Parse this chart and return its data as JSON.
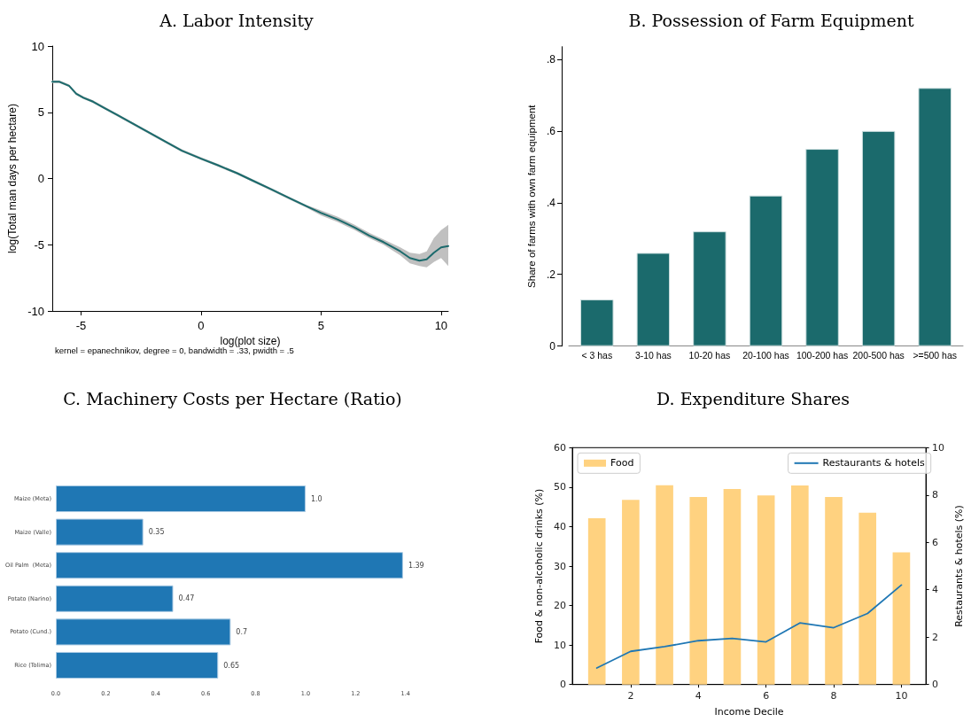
{
  "chart_data": [
    {
      "type": "line",
      "title": "A. Labor Intensity",
      "xlabel": "log(plot size)",
      "ylabel": "log(Total man days per hectare)",
      "annotations": [
        "kernel = epanechnikov, degree = 0, bandwidth = .33, pwidth = .5"
      ],
      "x": [
        -6.2,
        -5.9,
        -5.5,
        -5.2,
        -4.9,
        -4.5,
        -4.0,
        -3.5,
        -3.0,
        -2.3,
        -1.5,
        -0.8,
        0,
        0.7,
        1.5,
        2.2,
        2.9,
        3.7,
        4.4,
        5.0,
        5.7,
        6.4,
        7.0,
        7.6,
        8.3,
        8.7,
        9.1,
        9.4,
        9.7,
        10.0,
        10.3
      ],
      "series": [
        {
          "color": "#1b6a6c",
          "values": [
            7.3,
            7.3,
            7.0,
            6.4,
            6.1,
            5.8,
            5.3,
            4.8,
            4.3,
            3.6,
            2.8,
            2.1,
            1.5,
            1.0,
            0.4,
            -0.2,
            -0.8,
            -1.5,
            -2.1,
            -2.6,
            -3.1,
            -3.7,
            -4.3,
            -4.8,
            -5.5,
            -6.0,
            -6.2,
            -6.1,
            -5.6,
            -5.2,
            -5.1
          ],
          "lower": [
            7.2,
            7.2,
            6.9,
            6.3,
            6.0,
            5.7,
            5.2,
            4.7,
            4.2,
            3.5,
            2.7,
            2.0,
            1.4,
            0.9,
            0.3,
            -0.3,
            -0.9,
            -1.6,
            -2.2,
            -2.8,
            -3.3,
            -3.9,
            -4.5,
            -5.0,
            -5.8,
            -6.4,
            -6.6,
            -6.7,
            -6.3,
            -6.0,
            -6.6
          ],
          "upper": [
            7.4,
            7.4,
            7.1,
            6.5,
            6.2,
            5.9,
            5.4,
            4.9,
            4.4,
            3.7,
            2.9,
            2.2,
            1.6,
            1.1,
            0.5,
            -0.1,
            -0.7,
            -1.4,
            -2.0,
            -2.4,
            -2.9,
            -3.5,
            -4.1,
            -4.6,
            -5.2,
            -5.6,
            -5.7,
            -5.5,
            -4.5,
            -3.9,
            -3.5
          ]
        }
      ],
      "xlim": [
        -6.2,
        10.3
      ],
      "xticks": [
        -5,
        0,
        5,
        10
      ],
      "ylim": [
        -10,
        10
      ],
      "yticks": [
        -10,
        -5,
        0,
        5,
        10
      ]
    },
    {
      "type": "bar",
      "title": "B. Possession of Farm Equipment",
      "ylabel": "Share of farms with own farm equipment",
      "categories": [
        "< 3 has",
        "3-10 has",
        "10-20 has",
        "20-100 has",
        "100-200 has",
        "200-500 has",
        ">=500 has"
      ],
      "values": [
        0.13,
        0.26,
        0.32,
        0.42,
        0.55,
        0.6,
        0.72
      ],
      "color": "#1b6a6c",
      "ylim": [
        0,
        0.835
      ],
      "yticks": [
        0,
        {
          "value": 0.2,
          "label": ".2"
        },
        {
          "value": 0.4,
          "label": ".4"
        },
        {
          "value": 0.6,
          "label": ".6"
        },
        {
          "value": 0.8,
          "label": ".8"
        }
      ]
    },
    {
      "type": "bar",
      "orientation": "horizontal",
      "title": "C. Machinery Costs per Hectare (Ratio)",
      "categories": [
        "Maize (Meta)",
        "Maize (Valle)",
        "Oil Palm  (Meta)",
        "Potato (Narino)",
        "Potato (Cund.)",
        "Rice (Tolima)"
      ],
      "values": [
        1.0,
        0.35,
        1.39,
        0.47,
        0.7,
        0.65
      ],
      "value_labels": [
        "1.0",
        "0.35",
        "1.39",
        "0.47",
        "0.7",
        "0.65"
      ],
      "color": "#1f77b4",
      "xlim": [
        0,
        1.4
      ],
      "xticks": [
        {
          "value": 0,
          "label": "0.0"
        },
        0.2,
        0.4,
        0.6,
        0.8,
        {
          "value": 1,
          "label": "1.0"
        },
        1.2,
        1.4
      ]
    },
    {
      "type": "bar",
      "title": "D. Expenditure Shares",
      "xlabel": "Income Decile",
      "ylabel": "Food & non-alcoholic drinks (%)",
      "y2label": "Restaurants & hotels (%)",
      "x": [
        1,
        2,
        3,
        4,
        5,
        6,
        7,
        8,
        9,
        10
      ],
      "series": [
        {
          "name": "Food",
          "color": "#ffd280",
          "values": [
            42.1,
            46.8,
            50.5,
            47.5,
            49.5,
            47.9,
            50.4,
            47.5,
            43.5,
            33.5
          ]
        },
        {
          "name": "Restaurants & hotels",
          "type": "line",
          "axis": "y2",
          "color": "#1f77b4",
          "values": [
            0.7,
            1.4,
            1.6,
            1.85,
            1.95,
            1.8,
            2.6,
            2.4,
            3.0,
            4.2
          ]
        }
      ],
      "xlim": [
        0.275,
        10.725
      ],
      "xticks": [
        2,
        4,
        6,
        8,
        10
      ],
      "ylim": [
        0,
        60
      ],
      "yticks": [
        0,
        10,
        20,
        30,
        40,
        50,
        60
      ],
      "y2lim": [
        0,
        10
      ],
      "y2ticks": [
        0,
        2,
        4,
        6,
        8,
        10
      ],
      "legend": "top"
    }
  ]
}
